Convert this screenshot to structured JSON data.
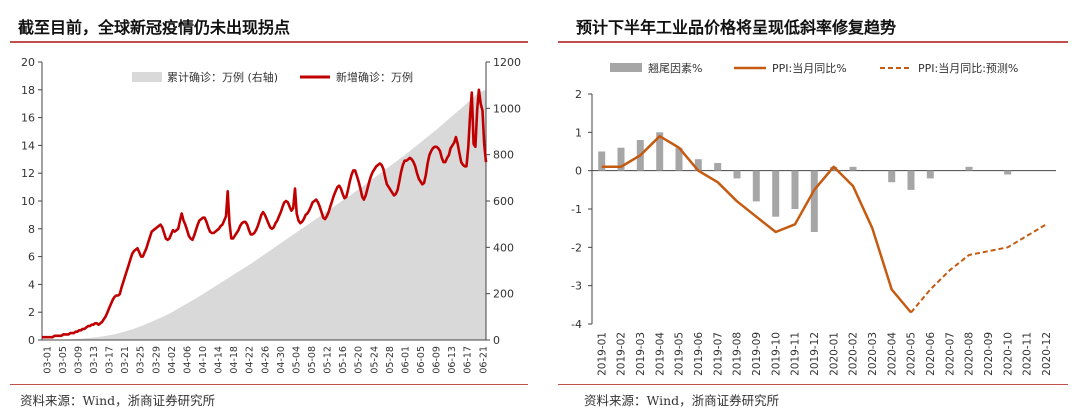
{
  "chart_data": [
    {
      "type": "area+line",
      "title": "截至目前，全球新冠疫情仍未出现拐点",
      "source": "资料来源：Wind，浙商证券研究所",
      "x_tick_labels": [
        "03-01",
        "03-05",
        "03-09",
        "03-13",
        "03-17",
        "03-21",
        "03-25",
        "03-29",
        "04-02",
        "04-06",
        "04-10",
        "04-14",
        "04-18",
        "04-22",
        "04-26",
        "04-30",
        "05-04",
        "05-08",
        "05-12",
        "05-16",
        "05-20",
        "05-24",
        "05-28",
        "06-01",
        "06-05",
        "06-09",
        "06-13",
        "06-17",
        "06-21"
      ],
      "y_left": {
        "ticks": [
          "0",
          "2",
          "4",
          "6",
          "8",
          "10",
          "12",
          "14",
          "16",
          "18",
          "20"
        ],
        "range": [
          0,
          20
        ]
      },
      "y_right": {
        "ticks": [
          "0",
          "200",
          "400",
          "600",
          "800",
          "1000",
          "1200"
        ],
        "range": [
          0,
          1200
        ]
      },
      "series": [
        {
          "name": "累计确诊：万例 (右轴)",
          "axis": "right",
          "color": "#d9d9d9",
          "type": "area",
          "values": [
            0.3,
            0.8,
            1.5,
            2.5,
            4,
            6,
            9,
            13,
            18,
            25,
            34,
            44,
            56,
            70,
            85,
            100,
            118,
            138,
            158,
            178,
            200,
            222,
            244,
            266,
            288,
            310,
            332,
            356,
            380,
            404,
            428,
            452,
            476,
            500,
            524,
            548,
            572,
            596,
            620,
            645,
            670,
            696,
            722,
            748,
            774,
            800,
            828,
            856,
            884,
            912,
            942,
            972,
            1002,
            1034,
            1066,
            1080
          ]
        },
        {
          "name": "新增确诊：万例",
          "axis": "left",
          "color": "#c00000",
          "type": "line",
          "values": [
            0.2,
            0.2,
            0.2,
            0.2,
            0.2,
            0.2,
            0.2,
            0.3,
            0.3,
            0.3,
            0.3,
            0.3,
            0.4,
            0.4,
            0.4,
            0.4,
            0.5,
            0.5,
            0.5,
            0.6,
            0.6,
            0.7,
            0.7,
            0.8,
            0.8,
            0.9,
            1.0,
            1.0,
            1.1,
            1.1,
            1.2,
            1.2,
            1.1,
            1.2,
            1.3,
            1.5,
            1.7,
            2.0,
            2.3,
            2.6,
            2.9,
            3.1,
            3.2,
            3.2,
            3.3,
            3.8,
            4.2,
            4.6,
            5.0,
            5.4,
            5.8,
            6.2,
            6.4,
            6.5,
            6.6,
            6.3,
            6.0,
            6.0,
            6.3,
            6.6,
            7.0,
            7.4,
            7.8,
            7.9,
            8.0,
            8.1,
            8.2,
            8.3,
            8.1,
            7.7,
            7.3,
            7.2,
            7.3,
            7.6,
            7.9,
            7.8,
            7.9,
            8.0,
            8.6,
            9.1,
            8.6,
            8.3,
            7.9,
            7.5,
            7.3,
            7.2,
            7.5,
            7.9,
            8.3,
            8.6,
            8.7,
            8.8,
            8.8,
            8.5,
            8.1,
            7.8,
            7.7,
            7.7,
            7.8,
            7.9,
            8.0,
            8.2,
            8.3,
            8.6,
            8.9,
            10.7,
            8.4,
            7.3,
            7.3,
            7.5,
            7.7,
            7.9,
            8.2,
            8.4,
            8.5,
            8.5,
            8.3,
            7.9,
            7.6,
            7.6,
            7.7,
            7.9,
            8.2,
            8.6,
            9.0,
            9.2,
            9.0,
            8.7,
            8.4,
            8.1,
            8.0,
            8.1,
            8.4,
            8.6,
            8.9,
            9.2,
            9.6,
            9.9,
            10.0,
            9.9,
            9.6,
            9.3,
            9.5,
            10.9,
            9.1,
            8.6,
            8.4,
            8.5,
            8.7,
            9.0,
            9.1,
            9.3,
            9.6,
            9.9,
            10.0,
            10.1,
            9.9,
            9.6,
            9.2,
            8.8,
            8.7,
            8.9,
            9.2,
            9.6,
            10.0,
            10.4,
            10.7,
            11.0,
            11.1,
            10.9,
            10.5,
            10.2,
            10.3,
            10.8,
            11.4,
            11.9,
            12.2,
            12.2,
            11.8,
            11.4,
            10.9,
            10.3,
            10.1,
            10.4,
            10.9,
            11.4,
            11.8,
            12.1,
            12.3,
            12.5,
            12.6,
            12.7,
            12.6,
            12.3,
            11.7,
            11.2,
            11.0,
            10.8,
            10.6,
            10.4,
            10.5,
            10.8,
            11.4,
            12.1,
            12.6,
            12.9,
            12.9,
            13.0,
            13.1,
            13.0,
            12.8,
            12.5,
            12.0,
            11.6,
            11.4,
            11.2,
            11.3,
            11.9,
            12.7,
            13.3,
            13.6,
            13.8,
            13.9,
            13.9,
            13.8,
            13.6,
            13.1,
            12.8,
            12.8,
            13.1,
            13.3,
            13.8,
            14.0,
            14.2,
            14.6,
            14.1,
            13.4,
            12.8,
            12.6,
            12.5,
            12.5,
            13.9,
            16.2,
            17.8,
            14.1,
            13.9,
            16.6,
            18.0,
            17.0,
            16.5,
            14.1,
            12.8
          ]
        }
      ]
    },
    {
      "type": "bar+line",
      "title": "预计下半年工业品价格将呈现低斜率修复趋势",
      "source": "资料来源：Wind，浙商证券研究所",
      "categories": [
        "2019-01",
        "2019-02",
        "2019-03",
        "2019-04",
        "2019-05",
        "2019-06",
        "2019-07",
        "2019-08",
        "2019-09",
        "2019-10",
        "2019-11",
        "2019-12",
        "2020-01",
        "2020-02",
        "2020-03",
        "2020-04",
        "2020-05",
        "2020-06",
        "2020-07",
        "2020-08",
        "2020-09",
        "2020-10",
        "2020-11",
        "2020-12"
      ],
      "y_ticks": [
        "2",
        "1",
        "0",
        "-1",
        "-2",
        "-3",
        "-4"
      ],
      "ylim": [
        -4,
        2
      ],
      "series": [
        {
          "name": "翘尾因素%",
          "type": "bar",
          "color": "#a6a6a6",
          "values": [
            0.5,
            0.6,
            0.8,
            1.0,
            0.6,
            0.3,
            0.2,
            -0.2,
            -0.8,
            -1.2,
            -1.0,
            -1.6,
            0.1,
            0.1,
            0.0,
            -0.3,
            -0.5,
            -0.2,
            0.0,
            0.1,
            0.0,
            -0.1,
            0.0,
            0.0
          ]
        },
        {
          "name": "PPI:当月同比%",
          "type": "line",
          "color": "#c55a11",
          "values": [
            0.1,
            0.1,
            0.4,
            0.9,
            0.6,
            0.0,
            -0.3,
            -0.8,
            -1.2,
            -1.6,
            -1.4,
            -0.5,
            0.1,
            -0.4,
            -1.5,
            -3.1,
            -3.7,
            null,
            null,
            null,
            null,
            null,
            null,
            null
          ]
        },
        {
          "name": "PPI:当月同比:预测%",
          "type": "dashed-line",
          "color": "#c55a11",
          "values": [
            null,
            null,
            null,
            null,
            null,
            null,
            null,
            null,
            null,
            null,
            null,
            null,
            null,
            null,
            null,
            null,
            -3.7,
            -3.1,
            -2.6,
            -2.2,
            -2.1,
            -2.0,
            -1.7,
            -1.4
          ]
        }
      ]
    }
  ]
}
